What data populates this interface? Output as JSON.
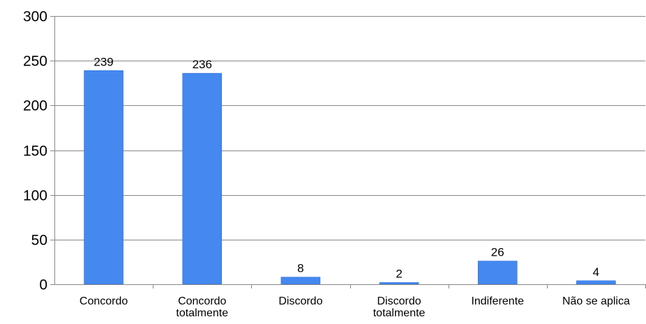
{
  "chart_data": {
    "type": "bar",
    "title": "",
    "xlabel": "",
    "ylabel": "",
    "categories": [
      [
        "Concordo"
      ],
      [
        "Concordo",
        "totalmente"
      ],
      [
        "Discordo"
      ],
      [
        "Discordo",
        "totalmente"
      ],
      [
        "Indiferente"
      ],
      [
        "Não se aplica"
      ]
    ],
    "values": [
      239,
      236,
      8,
      2,
      26,
      4
    ],
    "data_labels": [
      "239",
      "236",
      "8",
      "2",
      "26",
      "4"
    ],
    "ylim": [
      0,
      300
    ],
    "yticks": [
      0,
      50,
      100,
      150,
      200,
      250,
      300
    ],
    "grid": true,
    "legend": "none",
    "colors": {
      "bar": "#4488f0",
      "bar_stroke": "#3070d8",
      "grid": "#888888",
      "axis": "#888888",
      "text": "#000000"
    }
  }
}
